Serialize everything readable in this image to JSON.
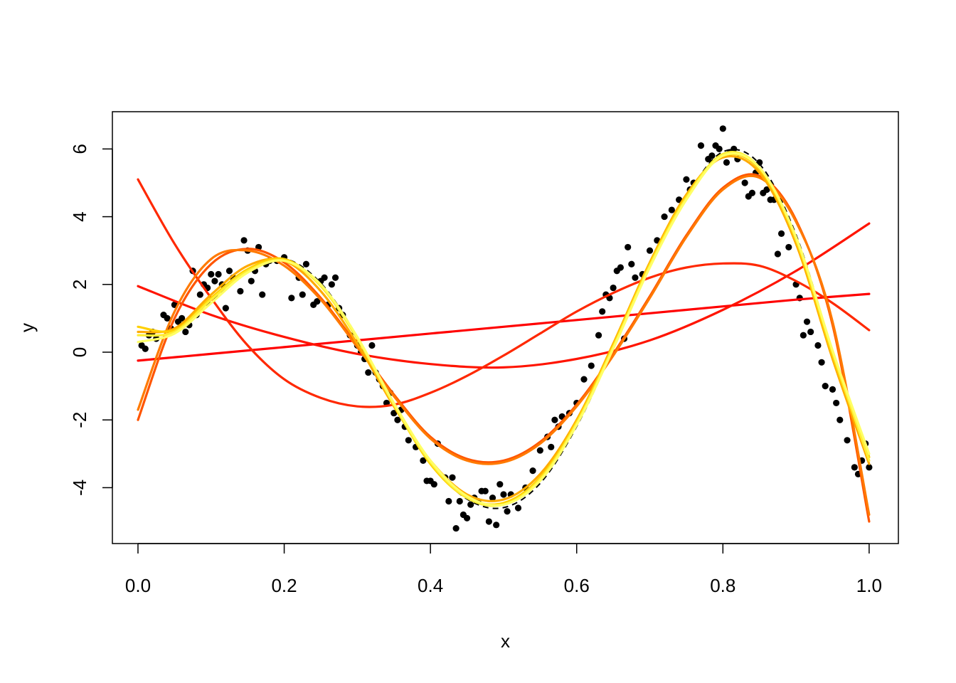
{
  "chart_data": {
    "type": "scatter",
    "xlabel": "x",
    "ylabel": "y",
    "xlim": [
      -0.035,
      1.04
    ],
    "ylim": [
      -5.65,
      7.1
    ],
    "x_ticks": [
      0.0,
      0.2,
      0.4,
      0.6,
      0.8,
      1.0
    ],
    "x_tick_labels": [
      "0.0",
      "0.2",
      "0.4",
      "0.6",
      "0.8",
      "1.0"
    ],
    "y_ticks": [
      -4,
      -2,
      0,
      2,
      4,
      6
    ],
    "y_tick_labels": [
      "-4",
      "-2",
      "0",
      "2",
      "4",
      "6"
    ],
    "grid": false,
    "legend": "none",
    "points": {
      "x": [
        0.005,
        0.01,
        0.015,
        0.02,
        0.025,
        0.035,
        0.04,
        0.045,
        0.05,
        0.055,
        0.06,
        0.065,
        0.07,
        0.075,
        0.08,
        0.085,
        0.09,
        0.095,
        0.1,
        0.105,
        0.11,
        0.115,
        0.12,
        0.125,
        0.13,
        0.14,
        0.145,
        0.15,
        0.155,
        0.16,
        0.165,
        0.17,
        0.175,
        0.18,
        0.19,
        0.2,
        0.21,
        0.22,
        0.225,
        0.23,
        0.24,
        0.245,
        0.25,
        0.255,
        0.26,
        0.265,
        0.27,
        0.275,
        0.28,
        0.29,
        0.3,
        0.305,
        0.31,
        0.315,
        0.32,
        0.325,
        0.33,
        0.335,
        0.34,
        0.345,
        0.35,
        0.355,
        0.36,
        0.365,
        0.37,
        0.38,
        0.39,
        0.395,
        0.4,
        0.405,
        0.41,
        0.42,
        0.425,
        0.43,
        0.435,
        0.44,
        0.445,
        0.45,
        0.455,
        0.46,
        0.465,
        0.47,
        0.475,
        0.48,
        0.485,
        0.49,
        0.495,
        0.5,
        0.505,
        0.51,
        0.52,
        0.53,
        0.54,
        0.55,
        0.56,
        0.565,
        0.57,
        0.575,
        0.58,
        0.59,
        0.6,
        0.61,
        0.62,
        0.63,
        0.635,
        0.64,
        0.645,
        0.65,
        0.655,
        0.66,
        0.665,
        0.67,
        0.675,
        0.68,
        0.69,
        0.7,
        0.71,
        0.72,
        0.73,
        0.74,
        0.75,
        0.755,
        0.76,
        0.77,
        0.78,
        0.785,
        0.79,
        0.795,
        0.8,
        0.805,
        0.81,
        0.815,
        0.82,
        0.83,
        0.835,
        0.84,
        0.845,
        0.85,
        0.855,
        0.86,
        0.865,
        0.87,
        0.875,
        0.88,
        0.89,
        0.9,
        0.905,
        0.91,
        0.915,
        0.92,
        0.93,
        0.935,
        0.94,
        0.95,
        0.955,
        0.96,
        0.97,
        0.98,
        0.985,
        0.99,
        0.995,
        1.0
      ],
      "y": [
        0.2,
        0.1,
        0.5,
        0.6,
        0.4,
        1.1,
        1.0,
        0.7,
        1.4,
        0.9,
        1.0,
        0.6,
        0.8,
        2.4,
        1.1,
        1.7,
        2.0,
        1.9,
        2.3,
        2.1,
        2.3,
        2.0,
        1.3,
        2.4,
        2.2,
        1.8,
        3.3,
        3.0,
        2.1,
        2.4,
        3.1,
        1.7,
        2.6,
        2.7,
        2.7,
        2.8,
        1.6,
        2.2,
        1.7,
        2.6,
        1.4,
        1.5,
        2.1,
        2.2,
        1.4,
        2.0,
        2.2,
        1.3,
        1.1,
        0.5,
        0.2,
        0.0,
        -0.2,
        -0.6,
        0.2,
        -0.6,
        -0.8,
        -1.0,
        -1.5,
        -1.2,
        -1.8,
        -2.0,
        -1.7,
        -2.2,
        -2.6,
        -2.8,
        -3.2,
        -3.8,
        -3.8,
        -3.9,
        -2.7,
        -3.7,
        -4.4,
        -3.7,
        -5.2,
        -4.4,
        -4.8,
        -4.9,
        -4.5,
        -4.3,
        -4.4,
        -4.1,
        -4.1,
        -5.0,
        -4.3,
        -5.1,
        -3.9,
        -4.2,
        -4.7,
        -4.2,
        -4.6,
        -4.0,
        -3.5,
        -2.9,
        -2.5,
        -2.8,
        -2.0,
        -2.2,
        -1.9,
        -1.8,
        -1.5,
        -0.8,
        -0.4,
        0.5,
        1.2,
        1.7,
        1.6,
        1.9,
        2.4,
        2.5,
        0.4,
        3.1,
        2.6,
        2.2,
        2.3,
        3.0,
        3.3,
        4.0,
        4.2,
        4.5,
        5.1,
        4.8,
        5.0,
        6.1,
        5.7,
        5.8,
        6.1,
        6.0,
        6.6,
        5.6,
        5.9,
        6.0,
        5.7,
        5.0,
        4.6,
        4.7,
        5.3,
        5.6,
        4.7,
        4.8,
        4.5,
        4.5,
        2.9,
        3.5,
        3.1,
        2.0,
        1.6,
        0.5,
        0.9,
        0.6,
        0.2,
        -0.3,
        -1.0,
        -1.1,
        -1.5,
        -2.0,
        -2.6,
        -3.4,
        -3.6,
        -3.2,
        -2.7,
        -3.4
      ]
    },
    "truth": {
      "style": "dashed",
      "color": "#000000",
      "function": "5*sin(2*pi*x)*cos(2*pi*x/3) scaled"
    },
    "series": [
      {
        "degree": 1,
        "color": "#ff0000",
        "x": [
          0.0,
          0.1,
          0.2,
          0.3,
          0.4,
          0.5,
          0.6,
          0.7,
          0.8,
          0.9,
          1.0
        ],
        "y": [
          -0.25,
          -0.05,
          0.15,
          0.35,
          0.55,
          0.75,
          0.95,
          1.15,
          1.35,
          1.55,
          1.72
        ]
      },
      {
        "degree": 2,
        "color": "#ff1400",
        "x": [
          0.0,
          0.1,
          0.2,
          0.3,
          0.4,
          0.5,
          0.6,
          0.7,
          0.8,
          0.9,
          1.0
        ],
        "y": [
          1.95,
          1.1,
          0.45,
          -0.05,
          -0.35,
          -0.45,
          -0.2,
          0.35,
          1.25,
          2.4,
          3.8
        ]
      },
      {
        "degree": 3,
        "color": "#ff2800",
        "x": [
          0.0,
          0.05,
          0.1,
          0.15,
          0.2,
          0.25,
          0.3,
          0.35,
          0.4,
          0.45,
          0.5,
          0.55,
          0.6,
          0.65,
          0.7,
          0.75,
          0.8,
          0.85,
          0.9,
          0.95,
          1.0
        ],
        "y": [
          5.1,
          3.2,
          1.6,
          0.2,
          -0.8,
          -1.35,
          -1.6,
          -1.55,
          -1.2,
          -0.7,
          -0.1,
          0.55,
          1.2,
          1.75,
          2.2,
          2.5,
          2.62,
          2.55,
          2.1,
          1.45,
          0.65
        ]
      },
      {
        "degree": 5,
        "color": "#ff5500",
        "x": [
          0.0,
          0.05,
          0.1,
          0.15,
          0.2,
          0.25,
          0.3,
          0.35,
          0.4,
          0.45,
          0.5,
          0.55,
          0.6,
          0.65,
          0.7,
          0.75,
          0.8,
          0.85,
          0.9,
          0.95,
          1.0
        ],
        "y": [
          -2.0,
          1.0,
          2.6,
          3.05,
          2.65,
          1.6,
          0.2,
          -1.25,
          -2.5,
          -3.15,
          -3.2,
          -2.65,
          -1.55,
          -0.05,
          1.65,
          3.45,
          4.85,
          5.2,
          3.9,
          0.8,
          -5.0
        ]
      },
      {
        "degree": 6,
        "color": "#ff7a00",
        "x": [
          0.0,
          0.05,
          0.1,
          0.15,
          0.2,
          0.25,
          0.3,
          0.35,
          0.4,
          0.45,
          0.5,
          0.55,
          0.6,
          0.65,
          0.7,
          0.75,
          0.8,
          0.85,
          0.9,
          0.95,
          1.0
        ],
        "y": [
          -1.7,
          1.2,
          2.75,
          3.0,
          2.55,
          1.55,
          0.15,
          -1.3,
          -2.55,
          -3.2,
          -3.25,
          -2.7,
          -1.6,
          -0.1,
          1.6,
          3.4,
          4.8,
          5.15,
          3.85,
          0.9,
          -4.8
        ]
      },
      {
        "degree": 8,
        "color": "#ffaa00",
        "x": [
          0.0,
          0.05,
          0.1,
          0.15,
          0.2,
          0.25,
          0.3,
          0.35,
          0.4,
          0.45,
          0.5,
          0.55,
          0.6,
          0.65,
          0.7,
          0.75,
          0.8,
          0.85,
          0.9,
          0.95,
          1.0
        ],
        "y": [
          0.6,
          0.7,
          1.7,
          2.55,
          2.7,
          1.8,
          0.25,
          -1.6,
          -3.2,
          -4.2,
          -4.35,
          -3.6,
          -2.0,
          0.25,
          2.65,
          4.65,
          5.75,
          5.3,
          3.2,
          -0.2,
          -3.3
        ]
      },
      {
        "degree": 10,
        "color": "#ffd000",
        "x": [
          0.0,
          0.05,
          0.1,
          0.15,
          0.2,
          0.25,
          0.3,
          0.35,
          0.4,
          0.45,
          0.5,
          0.55,
          0.6,
          0.65,
          0.7,
          0.75,
          0.8,
          0.85,
          0.9,
          0.95,
          1.0
        ],
        "y": [
          0.75,
          0.65,
          1.6,
          2.45,
          2.75,
          1.95,
          0.4,
          -1.55,
          -3.3,
          -4.3,
          -4.45,
          -3.7,
          -2.05,
          0.2,
          2.6,
          4.6,
          5.8,
          5.4,
          3.3,
          -0.1,
          -3.1
        ]
      },
      {
        "degree": 12,
        "color": "#ffee33",
        "x": [
          0.0,
          0.05,
          0.1,
          0.15,
          0.2,
          0.25,
          0.3,
          0.35,
          0.4,
          0.45,
          0.5,
          0.55,
          0.6,
          0.65,
          0.7,
          0.75,
          0.8,
          0.85,
          0.9,
          0.95,
          1.0
        ],
        "y": [
          0.5,
          0.6,
          1.55,
          2.4,
          2.7,
          1.95,
          0.4,
          -1.55,
          -3.25,
          -4.3,
          -4.5,
          -3.75,
          -2.1,
          0.15,
          2.55,
          4.55,
          5.85,
          5.45,
          3.35,
          0.0,
          -3.2
        ]
      },
      {
        "degree": 15,
        "color": "#ffff66",
        "x": [
          0.0,
          0.05,
          0.1,
          0.15,
          0.2,
          0.25,
          0.3,
          0.35,
          0.4,
          0.45,
          0.5,
          0.55,
          0.6,
          0.65,
          0.7,
          0.75,
          0.8,
          0.85,
          0.9,
          0.95,
          1.0
        ],
        "y": [
          0.3,
          0.55,
          1.45,
          2.35,
          2.7,
          2.0,
          0.45,
          -1.5,
          -3.2,
          -4.25,
          -4.5,
          -3.8,
          -2.15,
          0.1,
          2.5,
          4.5,
          5.8,
          5.45,
          3.4,
          0.05,
          -3.0
        ]
      }
    ]
  }
}
